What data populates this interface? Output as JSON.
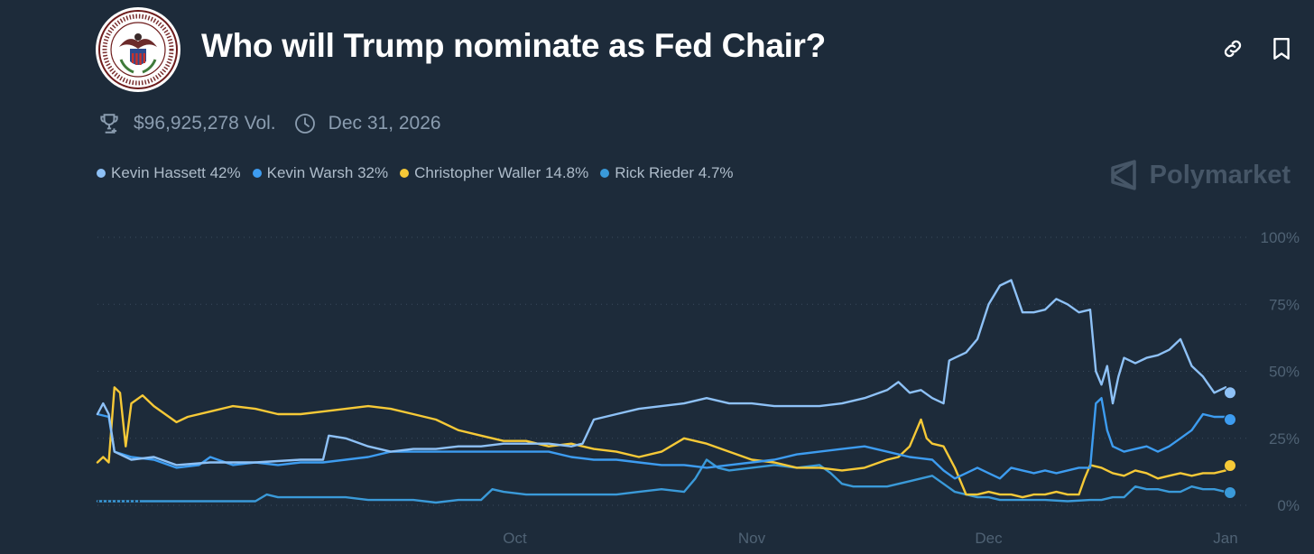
{
  "header": {
    "title": "Who will Trump nominate as Fed Chair?",
    "logo_text": "BOARD OF GOVERNORS OF THE FEDERAL RESERVE SYSTEM",
    "volume": "$96,925,278 Vol.",
    "end_date": "Dec 31, 2026",
    "brand": "Polymarket"
  },
  "icons": {
    "link": "link-icon",
    "bookmark": "bookmark-icon",
    "trophy": "trophy-icon",
    "clock": "clock-icon",
    "brand": "polymarket-logo-icon"
  },
  "legend": [
    {
      "label": "Kevin Hassett 42%",
      "color": "#8ec1f6"
    },
    {
      "label": "Kevin Warsh 32%",
      "color": "#3d9cf0"
    },
    {
      "label": "Christopher Waller 14.8%",
      "color": "#f6c937"
    },
    {
      "label": "Rick Rieder 4.7%",
      "color": "#3a9ad9"
    }
  ],
  "chart_data": {
    "type": "line",
    "title": "Who will Trump nominate as Fed Chair?",
    "xlabel": "",
    "ylabel": "",
    "ylim": [
      0,
      100
    ],
    "y_ticks": [
      0,
      25,
      50,
      75,
      100
    ],
    "y_tick_labels": [
      "0%",
      "25%",
      "50%",
      "75%",
      "100%"
    ],
    "x_domain": [
      0,
      100
    ],
    "x_ticks": [
      {
        "label": "Oct",
        "x": 37
      },
      {
        "label": "Nov",
        "x": 58
      },
      {
        "label": "Dec",
        "x": 79
      },
      {
        "label": "Jan",
        "x": 100
      }
    ],
    "series": [
      {
        "name": "Kevin Hassett",
        "color": "#8ec1f6",
        "points": [
          [
            0,
            34
          ],
          [
            0.5,
            38
          ],
          [
            1,
            34
          ],
          [
            1.5,
            20
          ],
          [
            3,
            17
          ],
          [
            5,
            18
          ],
          [
            7,
            15
          ],
          [
            10,
            16
          ],
          [
            14,
            16
          ],
          [
            18,
            17
          ],
          [
            20,
            17
          ],
          [
            20.5,
            26
          ],
          [
            22,
            25
          ],
          [
            24,
            22
          ],
          [
            26,
            20
          ],
          [
            28,
            21
          ],
          [
            30,
            21
          ],
          [
            32,
            22
          ],
          [
            34,
            22
          ],
          [
            36,
            23
          ],
          [
            38,
            23
          ],
          [
            40,
            23
          ],
          [
            42,
            22
          ],
          [
            43,
            23
          ],
          [
            44,
            32
          ],
          [
            46,
            34
          ],
          [
            48,
            36
          ],
          [
            50,
            37
          ],
          [
            52,
            38
          ],
          [
            54,
            40
          ],
          [
            56,
            38
          ],
          [
            58,
            38
          ],
          [
            60,
            37
          ],
          [
            62,
            37
          ],
          [
            64,
            37
          ],
          [
            66,
            38
          ],
          [
            68,
            40
          ],
          [
            70,
            43
          ],
          [
            71,
            46
          ],
          [
            72,
            42
          ],
          [
            73,
            43
          ],
          [
            74,
            40
          ],
          [
            75,
            38
          ],
          [
            75.5,
            54
          ],
          [
            76,
            55
          ],
          [
            77,
            57
          ],
          [
            78,
            62
          ],
          [
            79,
            75
          ],
          [
            80,
            82
          ],
          [
            81,
            84
          ],
          [
            82,
            72
          ],
          [
            83,
            72
          ],
          [
            84,
            73
          ],
          [
            85,
            77
          ],
          [
            86,
            75
          ],
          [
            87,
            72
          ],
          [
            88,
            73
          ],
          [
            88.5,
            50
          ],
          [
            89,
            45
          ],
          [
            89.5,
            52
          ],
          [
            90,
            38
          ],
          [
            90.5,
            48
          ],
          [
            91,
            55
          ],
          [
            92,
            53
          ],
          [
            93,
            55
          ],
          [
            94,
            56
          ],
          [
            95,
            58
          ],
          [
            96,
            62
          ],
          [
            97,
            52
          ],
          [
            98,
            48
          ],
          [
            99,
            42
          ],
          [
            100,
            44
          ],
          [
            101,
            41
          ]
        ],
        "end_value": 42
      },
      {
        "name": "Kevin Warsh",
        "color": "#3d9cf0",
        "points": [
          [
            0,
            34
          ],
          [
            1,
            33
          ],
          [
            1.5,
            20
          ],
          [
            3,
            18
          ],
          [
            5,
            17
          ],
          [
            7,
            14
          ],
          [
            9,
            15
          ],
          [
            10,
            18
          ],
          [
            12,
            15
          ],
          [
            14,
            16
          ],
          [
            16,
            15
          ],
          [
            18,
            16
          ],
          [
            20,
            16
          ],
          [
            22,
            17
          ],
          [
            24,
            18
          ],
          [
            26,
            20
          ],
          [
            28,
            20
          ],
          [
            30,
            20
          ],
          [
            32,
            20
          ],
          [
            34,
            20
          ],
          [
            36,
            20
          ],
          [
            38,
            20
          ],
          [
            40,
            20
          ],
          [
            42,
            18
          ],
          [
            44,
            17
          ],
          [
            46,
            17
          ],
          [
            48,
            16
          ],
          [
            50,
            15
          ],
          [
            52,
            15
          ],
          [
            54,
            14
          ],
          [
            56,
            15
          ],
          [
            58,
            16
          ],
          [
            60,
            17
          ],
          [
            62,
            19
          ],
          [
            64,
            20
          ],
          [
            66,
            21
          ],
          [
            68,
            22
          ],
          [
            70,
            20
          ],
          [
            72,
            18
          ],
          [
            74,
            17
          ],
          [
            75,
            13
          ],
          [
            76,
            10
          ],
          [
            77,
            12
          ],
          [
            78,
            14
          ],
          [
            79,
            12
          ],
          [
            80,
            10
          ],
          [
            81,
            14
          ],
          [
            82,
            13
          ],
          [
            83,
            12
          ],
          [
            84,
            13
          ],
          [
            85,
            12
          ],
          [
            86,
            13
          ],
          [
            87,
            14
          ],
          [
            88,
            14
          ],
          [
            88.5,
            38
          ],
          [
            89,
            40
          ],
          [
            89.5,
            28
          ],
          [
            90,
            22
          ],
          [
            91,
            20
          ],
          [
            92,
            21
          ],
          [
            93,
            22
          ],
          [
            94,
            20
          ],
          [
            95,
            22
          ],
          [
            96,
            25
          ],
          [
            97,
            28
          ],
          [
            98,
            34
          ],
          [
            99,
            33
          ],
          [
            100,
            33
          ],
          [
            101,
            32
          ]
        ],
        "end_value": 32
      },
      {
        "name": "Christopher Waller",
        "color": "#f6c937",
        "points": [
          [
            0,
            16
          ],
          [
            0.5,
            18
          ],
          [
            1,
            16
          ],
          [
            1.5,
            44
          ],
          [
            2,
            42
          ],
          [
            2.5,
            22
          ],
          [
            3,
            38
          ],
          [
            4,
            41
          ],
          [
            5,
            37
          ],
          [
            6,
            34
          ],
          [
            7,
            31
          ],
          [
            8,
            33
          ],
          [
            10,
            35
          ],
          [
            12,
            37
          ],
          [
            14,
            36
          ],
          [
            16,
            34
          ],
          [
            18,
            34
          ],
          [
            20,
            35
          ],
          [
            22,
            36
          ],
          [
            24,
            37
          ],
          [
            26,
            36
          ],
          [
            28,
            34
          ],
          [
            30,
            32
          ],
          [
            32,
            28
          ],
          [
            34,
            26
          ],
          [
            36,
            24
          ],
          [
            38,
            24
          ],
          [
            40,
            22
          ],
          [
            42,
            23
          ],
          [
            44,
            21
          ],
          [
            46,
            20
          ],
          [
            48,
            18
          ],
          [
            50,
            20
          ],
          [
            52,
            25
          ],
          [
            54,
            23
          ],
          [
            56,
            20
          ],
          [
            58,
            17
          ],
          [
            60,
            16
          ],
          [
            62,
            14
          ],
          [
            64,
            14
          ],
          [
            66,
            13
          ],
          [
            68,
            14
          ],
          [
            70,
            17
          ],
          [
            71,
            18
          ],
          [
            72,
            22
          ],
          [
            73,
            32
          ],
          [
            73.5,
            25
          ],
          [
            74,
            23
          ],
          [
            75,
            22
          ],
          [
            76,
            14
          ],
          [
            77,
            4
          ],
          [
            78,
            4
          ],
          [
            79,
            5
          ],
          [
            80,
            4
          ],
          [
            81,
            4
          ],
          [
            82,
            3
          ],
          [
            83,
            4
          ],
          [
            84,
            4
          ],
          [
            85,
            5
          ],
          [
            86,
            4
          ],
          [
            87,
            4
          ],
          [
            87.5,
            10
          ],
          [
            88,
            15
          ],
          [
            89,
            14
          ],
          [
            90,
            12
          ],
          [
            91,
            11
          ],
          [
            92,
            13
          ],
          [
            93,
            12
          ],
          [
            94,
            10
          ],
          [
            95,
            11
          ],
          [
            96,
            12
          ],
          [
            97,
            11
          ],
          [
            98,
            12
          ],
          [
            99,
            12
          ],
          [
            100,
            13
          ],
          [
            101,
            14.8
          ]
        ],
        "end_value": 14.8
      },
      {
        "name": "Rick Rieder",
        "color": "#3a9ad9",
        "points": [
          [
            0,
            1.5
          ],
          [
            5,
            1.5
          ],
          [
            10,
            1.5
          ],
          [
            14,
            1.5
          ],
          [
            15,
            4
          ],
          [
            16,
            3
          ],
          [
            18,
            3
          ],
          [
            20,
            3
          ],
          [
            22,
            3
          ],
          [
            24,
            2
          ],
          [
            26,
            2
          ],
          [
            28,
            2
          ],
          [
            30,
            1
          ],
          [
            32,
            2
          ],
          [
            34,
            2
          ],
          [
            35,
            6
          ],
          [
            36,
            5
          ],
          [
            38,
            4
          ],
          [
            40,
            4
          ],
          [
            42,
            4
          ],
          [
            44,
            4
          ],
          [
            46,
            4
          ],
          [
            48,
            5
          ],
          [
            50,
            6
          ],
          [
            52,
            5
          ],
          [
            53,
            10
          ],
          [
            54,
            17
          ],
          [
            55,
            14
          ],
          [
            56,
            13
          ],
          [
            58,
            14
          ],
          [
            60,
            15
          ],
          [
            62,
            14
          ],
          [
            64,
            15
          ],
          [
            65,
            12
          ],
          [
            66,
            8
          ],
          [
            67,
            7
          ],
          [
            68,
            7
          ],
          [
            70,
            7
          ],
          [
            72,
            9
          ],
          [
            74,
            11
          ],
          [
            75,
            8
          ],
          [
            76,
            5
          ],
          [
            77,
            4
          ],
          [
            78,
            3
          ],
          [
            79,
            3
          ],
          [
            80,
            2
          ],
          [
            82,
            2
          ],
          [
            84,
            2
          ],
          [
            86,
            1.5
          ],
          [
            88,
            2
          ],
          [
            89,
            2
          ],
          [
            90,
            3
          ],
          [
            91,
            3
          ],
          [
            92,
            7
          ],
          [
            93,
            6
          ],
          [
            94,
            6
          ],
          [
            95,
            5
          ],
          [
            96,
            5
          ],
          [
            97,
            7
          ],
          [
            98,
            6
          ],
          [
            99,
            6
          ],
          [
            100,
            5
          ],
          [
            101,
            4.7
          ]
        ],
        "end_value": 4.7
      }
    ]
  }
}
